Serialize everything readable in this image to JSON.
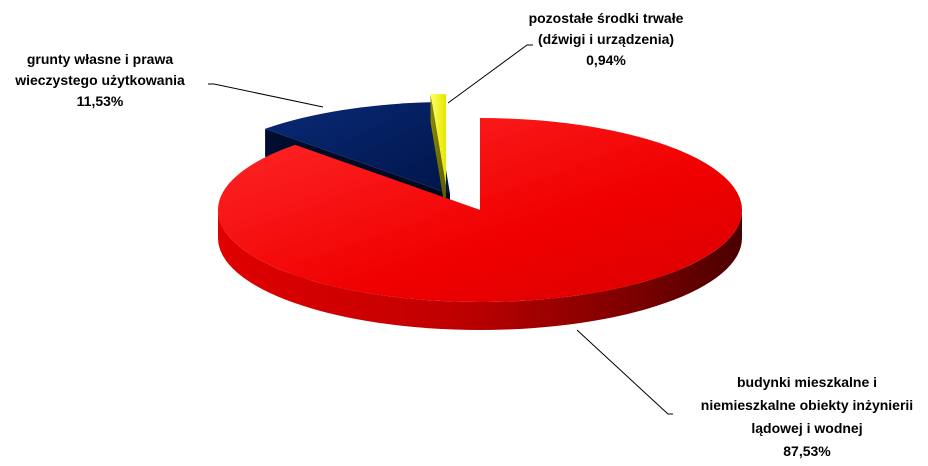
{
  "chart_data": {
    "type": "pie",
    "style": "3d-exploded",
    "slices": [
      {
        "label_lines": [
          "budynki mieszkalne i",
          "niemieszkalne obiekty inżynierii",
          "lądowej i wodnej"
        ],
        "percent_label": "87,53%",
        "value": 87.53,
        "color": "#ff0000"
      },
      {
        "label_lines": [
          "grunty własne i prawa",
          "wieczystego użytkowania"
        ],
        "percent_label": "11,53%",
        "value": 11.53,
        "color": "#001a5e"
      },
      {
        "label_lines": [
          "pozostałe środki trwałe",
          "(dźwigi  i urządzenia)"
        ],
        "percent_label": "0,94%",
        "value": 0.94,
        "color": "#ffff00"
      }
    ],
    "legend": "none",
    "grid": false
  }
}
